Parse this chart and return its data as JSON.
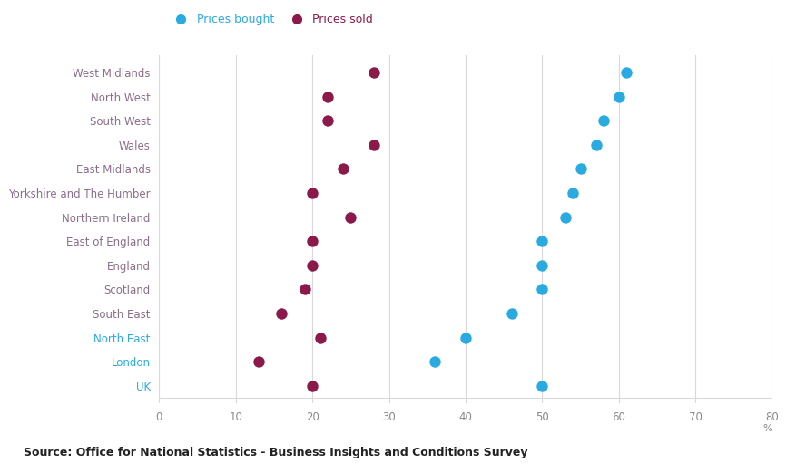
{
  "regions": [
    "West Midlands",
    "North West",
    "South West",
    "Wales",
    "East Midlands",
    "Yorkshire and The Humber",
    "Northern Ireland",
    "East of England",
    "England",
    "Scotland",
    "South East",
    "North East",
    "London",
    "UK"
  ],
  "prices_bought": [
    61,
    60,
    58,
    57,
    55,
    54,
    53,
    50,
    50,
    50,
    46,
    40,
    36,
    50
  ],
  "prices_sold": [
    28,
    22,
    22,
    28,
    24,
    20,
    25,
    20,
    20,
    19,
    16,
    21,
    13,
    20
  ],
  "color_bought": "#29ABE2",
  "color_sold": "#8B1A4A",
  "xlabel": "%",
  "xlim": [
    0,
    80
  ],
  "xticks": [
    0,
    10,
    20,
    30,
    40,
    50,
    60,
    70,
    80
  ],
  "source_text": "Source: Office for National Statistics - Business Insights and Conditions Survey",
  "legend_bought": "Prices bought",
  "legend_sold": "Prices sold",
  "dot_size": 80,
  "background_color": "#ffffff",
  "grid_color": "#d9d9d9",
  "label_color_default": "#8C6D8C",
  "label_color_highlight": "#29ABE2",
  "highlight_regions": [
    "North East",
    "London",
    "UK"
  ],
  "legend_color": "#29ABE2",
  "legend_sold_text_color": "#8B1A4A"
}
